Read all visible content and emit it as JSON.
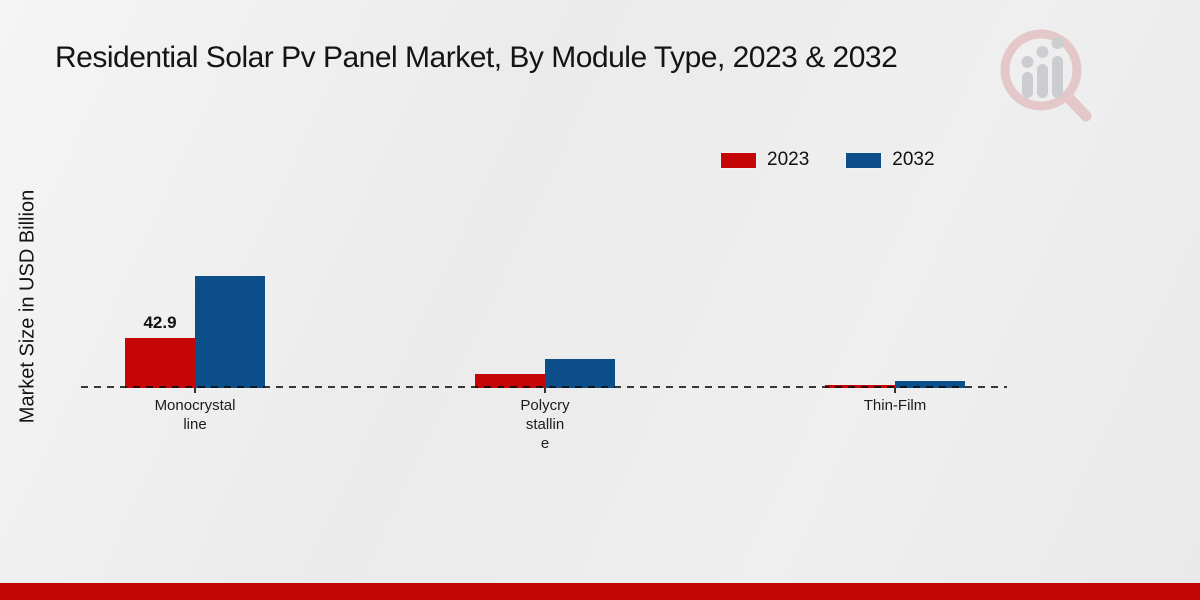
{
  "title": "Residential Solar Pv Panel Market, By Module Type, 2023 & 2032",
  "y_axis_label": "Market Size in USD Billion",
  "legend": {
    "items": [
      {
        "label": "2023",
        "color": "#c40606"
      },
      {
        "label": "2032",
        "color": "#0b4e8a"
      }
    ]
  },
  "chart_data": {
    "type": "bar",
    "title": "Residential Solar Pv Panel Market, By Module Type, 2023 & 2032",
    "ylabel": "Market Size in USD Billion",
    "categories": [
      "Monocrystalline",
      "Polycrystalline",
      "Thin-Film"
    ],
    "category_label_lines": [
      [
        "Monocrystal",
        "line"
      ],
      [
        "Polycry",
        "stallin",
        "e"
      ],
      [
        "Thin-Film"
      ]
    ],
    "series": [
      {
        "name": "2023",
        "color": "#c40606",
        "values": [
          42.9,
          12.1,
          2.5
        ]
      },
      {
        "name": "2032",
        "color": "#0b4e8a",
        "values": [
          96.9,
          25.0,
          6.3
        ]
      }
    ],
    "data_labels": [
      {
        "series": "2023",
        "category": "Monocrystalline",
        "text": "42.9"
      }
    ],
    "ylim": [
      0,
      110
    ],
    "grid": false,
    "baseline_style": "dashed",
    "legend_position": "top-right"
  },
  "watermark": {
    "icon": "magnifier-bar-chart-logo",
    "ring_color": "#e2c1c3",
    "bars_color": "#c6c8cc"
  },
  "footer": {
    "bar_color": "#c00505"
  }
}
